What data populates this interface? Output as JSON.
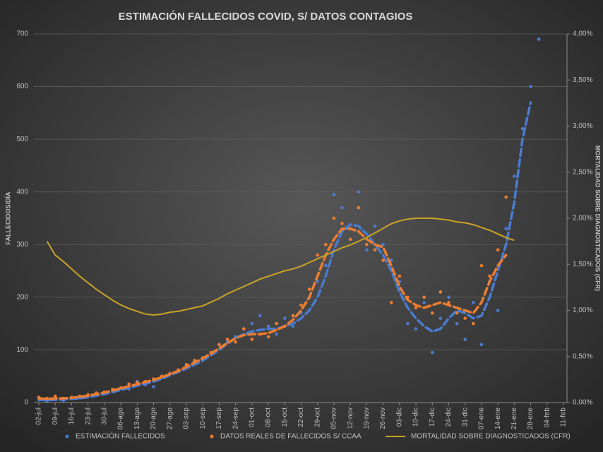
{
  "chart_data": {
    "type": "combo",
    "title": "ESTIMACIÓN FALLECIDOS COVID, S/ DATOS CONTAGIOS",
    "y_label": "FALLECIDOS/DÍA",
    "y2_label": "MORTALIDAD SOBRE DIAGNOSTICADOS (CFR)",
    "categories": [
      "02-jul",
      null,
      "09-jul",
      null,
      "16-jul",
      null,
      "23-jul",
      null,
      "30-jul",
      null,
      "06-ago",
      null,
      "13-ago",
      null,
      "20-ago",
      null,
      "27-ago",
      null,
      "03-sep",
      null,
      "10-sep",
      null,
      "17-sep",
      null,
      "24-sep",
      null,
      "01-oct",
      null,
      "08-oct",
      null,
      "15-oct",
      null,
      "22-oct",
      null,
      "29-oct",
      null,
      "05-nov",
      null,
      "12-nov",
      null,
      "19-nov",
      null,
      "26-nov",
      null,
      "03-dic",
      null,
      "10-dic",
      null,
      "17-dic",
      null,
      "24-dic",
      null,
      "31-dic",
      null,
      "07-ene",
      null,
      "14-ene",
      null,
      "21-ene",
      null,
      "28-ene",
      null,
      "04-feb",
      null,
      "11-feb"
    ],
    "ylim": [
      0,
      700
    ],
    "yticks": [
      0,
      100,
      200,
      300,
      400,
      500,
      600,
      700
    ],
    "y2lim": [
      0,
      4
    ],
    "y2ticks": [
      {
        "value": 0,
        "label": "0,00%"
      },
      {
        "value": 0.5,
        "label": "0,50%"
      },
      {
        "value": 1,
        "label": "1,00%"
      },
      {
        "value": 1.5,
        "label": "1,50%"
      },
      {
        "value": 2,
        "label": "2,00%"
      },
      {
        "value": 2.5,
        "label": "2,50%"
      },
      {
        "value": 3,
        "label": "3,00%"
      },
      {
        "value": 3.5,
        "label": "3,50%"
      },
      {
        "value": 4,
        "label": "4,00%"
      }
    ],
    "grid": true,
    "legend": "bottom",
    "series": [
      {
        "name": "ESTIMACIÓN FALLECIDOS",
        "kind": "scatter",
        "color": "#4a7bd0",
        "values": [
          5,
          3,
          6,
          4,
          8,
          9,
          12,
          15,
          18,
          22,
          27,
          26,
          40,
          34,
          30,
          48,
          55,
          60,
          70,
          78,
          85,
          92,
          110,
          115,
          125,
          140,
          150,
          165,
          145,
          130,
          160,
          145,
          170,
          200,
          230,
          260,
          395,
          370,
          330,
          400,
          290,
          335,
          300,
          270,
          230,
          150,
          140,
          190,
          95,
          160,
          200,
          150,
          120,
          190,
          110,
          230,
          175,
          330,
          430,
          520,
          600,
          690,
          null,
          null,
          null
        ],
        "trend": [
          5,
          5,
          5,
          6,
          7,
          8,
          10,
          13,
          16,
          20,
          24,
          28,
          32,
          36,
          40,
          45,
          52,
          58,
          65,
          72,
          80,
          90,
          100,
          112,
          122,
          130,
          135,
          138,
          140,
          140,
          145,
          150,
          160,
          175,
          200,
          240,
          290,
          325,
          338,
          335,
          320,
          300,
          280,
          250,
          210,
          180,
          160,
          145,
          135,
          140,
          160,
          175,
          170,
          160,
          165,
          200,
          250,
          300,
          380,
          500,
          570,
          null,
          null,
          null,
          null
        ]
      },
      {
        "name": "DATOS REALES DE FALLECIDOS S/ CCAA",
        "kind": "scatter",
        "color": "#ed7d31",
        "values": [
          10,
          8,
          12,
          8,
          10,
          12,
          15,
          18,
          20,
          25,
          28,
          35,
          38,
          40,
          45,
          50,
          55,
          62,
          72,
          80,
          85,
          95,
          110,
          120,
          115,
          140,
          120,
          130,
          125,
          150,
          145,
          165,
          185,
          215,
          280,
          300,
          350,
          340,
          310,
          370,
          300,
          290,
          270,
          190,
          240,
          200,
          180,
          200,
          170,
          210,
          190,
          170,
          160,
          150,
          260,
          240,
          290,
          390,
          null,
          null,
          null,
          null,
          null,
          null,
          null
        ],
        "trend": [
          8,
          7,
          8,
          8,
          9,
          11,
          13,
          16,
          19,
          23,
          27,
          31,
          35,
          39,
          43,
          48,
          54,
          60,
          68,
          76,
          84,
          93,
          103,
          113,
          122,
          128,
          130,
          130,
          132,
          138,
          145,
          157,
          175,
          200,
          240,
          280,
          310,
          330,
          330,
          325,
          310,
          300,
          295,
          260,
          220,
          195,
          185,
          180,
          185,
          190,
          185,
          180,
          175,
          170,
          190,
          230,
          260,
          280,
          null,
          null,
          null,
          null,
          null,
          null,
          null
        ]
      },
      {
        "name": "MORTALIDAD SOBRE DIAGNOSTICADOS (CFR)",
        "kind": "line",
        "axis": "y2",
        "color": "#c9a227",
        "values": [
          null,
          1.75,
          1.6,
          1.53,
          1.45,
          1.37,
          1.3,
          1.23,
          1.17,
          1.11,
          1.06,
          1.02,
          0.99,
          0.96,
          0.95,
          0.96,
          0.98,
          0.99,
          1.01,
          1.03,
          1.05,
          1.09,
          1.13,
          1.18,
          1.22,
          1.26,
          1.3,
          1.34,
          1.37,
          1.4,
          1.43,
          1.45,
          1.48,
          1.52,
          1.56,
          1.6,
          1.64,
          1.68,
          1.71,
          1.75,
          1.79,
          1.84,
          1.89,
          1.94,
          1.97,
          1.99,
          2.0,
          2.0,
          2.0,
          1.99,
          1.98,
          1.96,
          1.95,
          1.93,
          1.9,
          1.87,
          1.83,
          1.79,
          1.76,
          null,
          null,
          null,
          null,
          null,
          null
        ]
      }
    ]
  }
}
